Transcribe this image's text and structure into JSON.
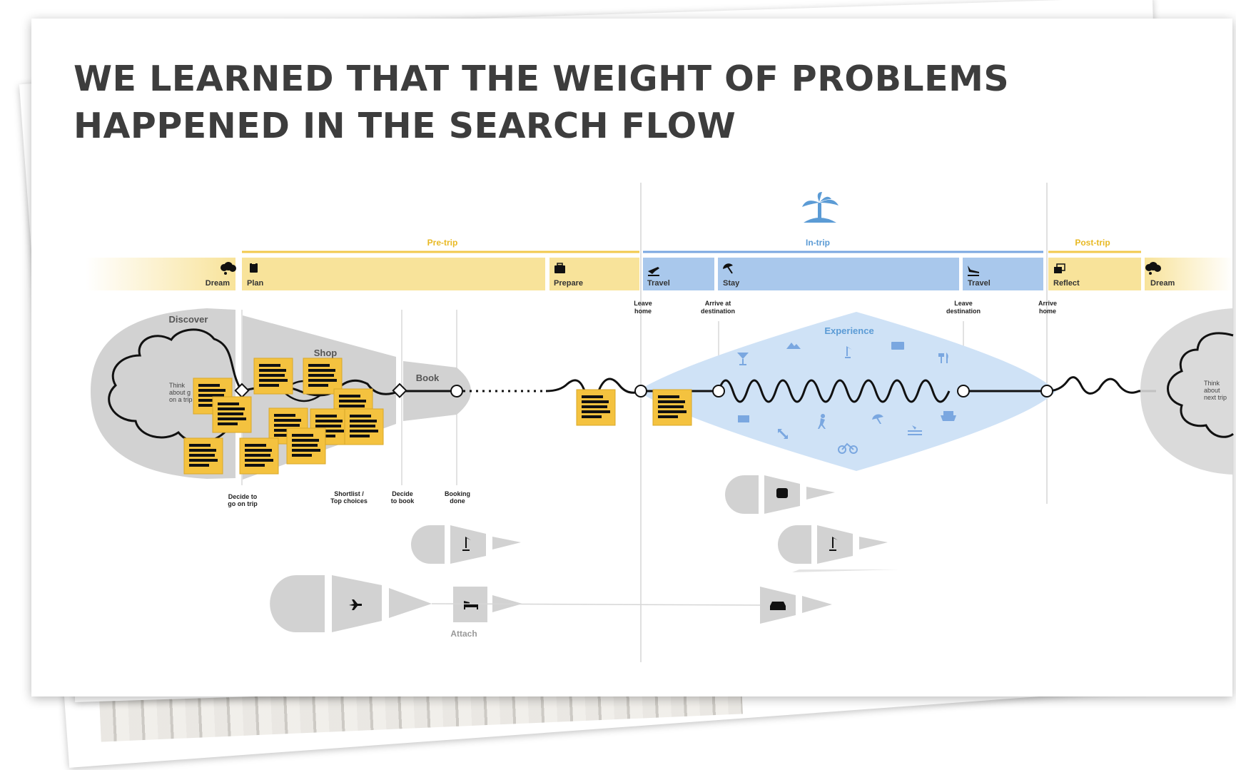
{
  "slide": {
    "headline": "WE LEARNED THAT THE WEIGHT OF PROBLEMS HAPPENED IN THE SEARCH FLOW"
  },
  "journey": {
    "phases": [
      {
        "label": "Pre-trip",
        "color": "#f2c94c"
      },
      {
        "label": "In-trip",
        "color": "#7aa7e0"
      },
      {
        "label": "Post-trip",
        "color": "#f2c94c"
      }
    ],
    "stages": [
      {
        "label": "Dream",
        "icon": "thought-cloud-icon"
      },
      {
        "label": "Plan",
        "icon": "clipboard-icon"
      },
      {
        "label": "Prepare",
        "icon": "suitcase-icon"
      },
      {
        "label": "Travel",
        "icon": "plane-departure-icon"
      },
      {
        "label": "Stay",
        "icon": "beach-umbrella-icon"
      },
      {
        "label": "Travel",
        "icon": "plane-arrival-icon"
      },
      {
        "label": "Reflect",
        "icon": "photos-icon"
      },
      {
        "label": "Dream",
        "icon": "thought-cloud-icon"
      }
    ],
    "milestones_top": {
      "leave_home": [
        "Leave",
        "home"
      ],
      "arrive_destination": [
        "Arrive at",
        "destination"
      ],
      "leave_destination": [
        "Leave",
        "destination"
      ],
      "arrive_home": [
        "Arrive",
        "home"
      ]
    },
    "milestones_bottom": {
      "decide_trip": [
        "Decide to",
        "go on trip"
      ],
      "shortlist": [
        "Shortlist /",
        "Top choices"
      ],
      "decide_book": [
        "Decide",
        "to book"
      ],
      "booking_done": [
        "Booking",
        "done"
      ]
    },
    "shapes": {
      "discover": "Discover",
      "shop": "Shop",
      "book": "Book",
      "experience": "Experience",
      "attach": "Attach"
    },
    "cloud_text_left": [
      "Think",
      "about g",
      "on a trip"
    ],
    "cloud_text_right": [
      "Think",
      "about",
      "next trip"
    ]
  },
  "colors": {
    "pre_trip": "#f8e39a",
    "in_trip": "#a9c8ec",
    "sticky": "#f4c23f",
    "shape_gray": "#d2d2d2",
    "experience_blue": "#cfe2f6",
    "accent_blue": "#5b9bd5",
    "yellow_line": "#f2c94c"
  }
}
